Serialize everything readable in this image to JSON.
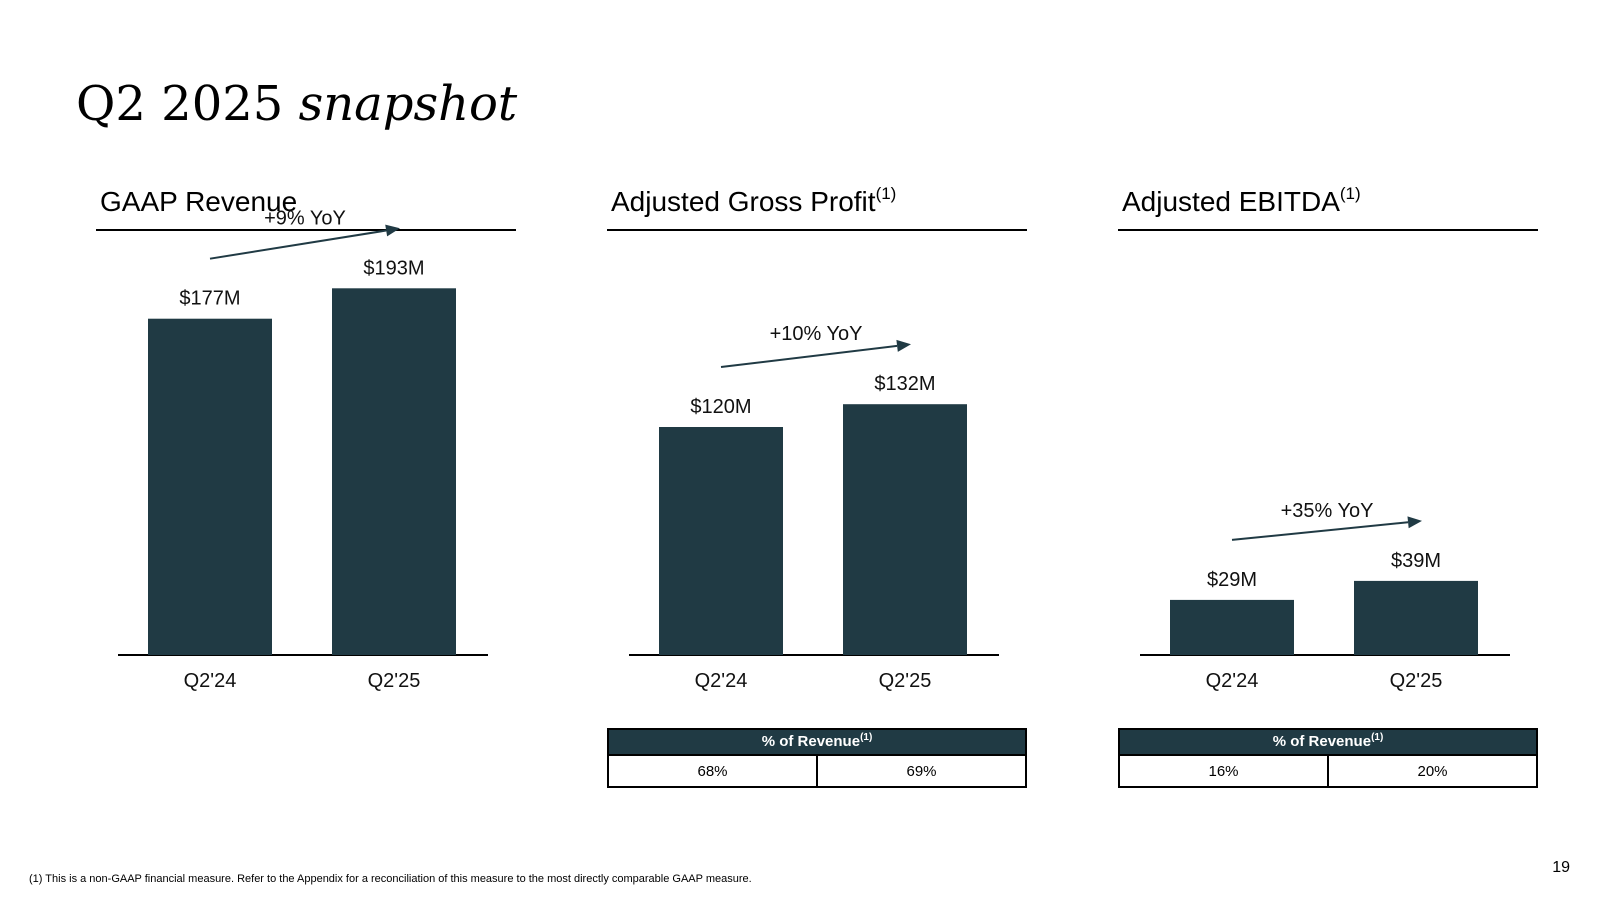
{
  "title": {
    "regular": "Q2 2025",
    "italic": "snapshot"
  },
  "colors": {
    "accent": "#203a44",
    "text": "#111111",
    "rule": "#000000"
  },
  "chart_data": [
    {
      "type": "bar",
      "title": "GAAP Revenue",
      "title_sup": "",
      "categories": [
        "Q2'24",
        "Q2'25"
      ],
      "values": [
        177,
        193
      ],
      "value_labels": [
        "$177M",
        "$193M"
      ],
      "yoy_label": "+9% YoY",
      "ylim": [
        0,
        200
      ],
      "grid": false,
      "legend": "none"
    },
    {
      "type": "bar",
      "title": "Adjusted Gross Profit",
      "title_sup": "(1)",
      "categories": [
        "Q2'24",
        "Q2'25"
      ],
      "values": [
        120,
        132
      ],
      "value_labels": [
        "$120M",
        "$132M"
      ],
      "yoy_label": "+10% YoY",
      "ylim": [
        0,
        200
      ],
      "grid": false,
      "legend": "none"
    },
    {
      "type": "bar",
      "title": "Adjusted EBITDA",
      "title_sup": "(1)",
      "categories": [
        "Q2'24",
        "Q2'25"
      ],
      "values": [
        29,
        39
      ],
      "value_labels": [
        "$29M",
        "$39M"
      ],
      "yoy_label": "+35% YoY",
      "ylim": [
        0,
        200
      ],
      "grid": false,
      "legend": "none"
    }
  ],
  "tables": [
    null,
    {
      "header": "% of Revenue",
      "header_sup": "(1)",
      "values": [
        "68%",
        "69%"
      ]
    },
    {
      "header": "% of Revenue",
      "header_sup": "(1)",
      "values": [
        "16%",
        "20%"
      ]
    }
  ],
  "footnote": "(1) This is a non-GAAP financial measure.  Refer to the Appendix for a reconciliation of this measure to the most directly comparable GAAP measure.",
  "page_number": "19"
}
